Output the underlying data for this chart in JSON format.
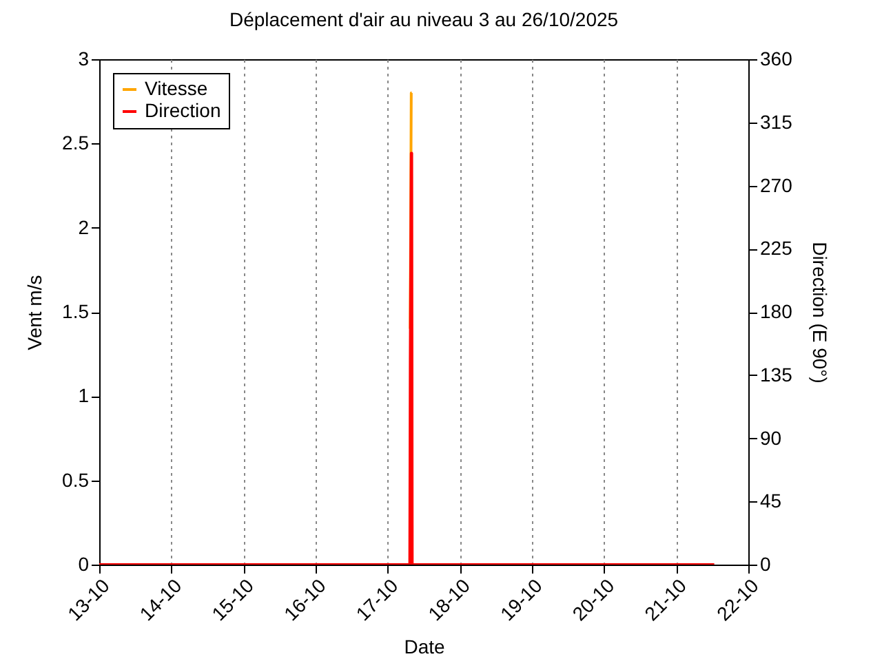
{
  "chart_data": {
    "type": "line",
    "title": "Déplacement d'air au niveau 3 au 26/10/2025",
    "xlabel": "Date",
    "ylabel": "Vent m/s",
    "y2label": "Direction (E 90°)",
    "series": [
      {
        "name": "Vitesse",
        "color": "#ffa500",
        "x": [
          "2025-10-17T07:30",
          "2025-10-17T07:50",
          "2025-10-17T08:00"
        ],
        "values": [
          1.4,
          2.8,
          2.8
        ]
      },
      {
        "name": "Direction",
        "color": "#ff0000",
        "axis": "y2",
        "x": [
          "2025-10-13T00:00",
          "2025-10-17T07:20",
          "2025-10-17T07:30",
          "2025-10-17T07:50",
          "2025-10-17T08:00",
          "2025-10-17T08:10",
          "2025-10-21T12:40"
        ],
        "values": [
          0,
          0,
          146,
          293,
          293,
          0,
          0
        ]
      }
    ],
    "xlim": [
      "2025-10-13",
      "2025-10-22"
    ],
    "xticks": [
      {
        "value": "2025-10-13",
        "label": "13-10"
      },
      {
        "value": "2025-10-14",
        "label": "14-10"
      },
      {
        "value": "2025-10-15",
        "label": "15-10"
      },
      {
        "value": "2025-10-16",
        "label": "16-10"
      },
      {
        "value": "2025-10-17",
        "label": "17-10"
      },
      {
        "value": "2025-10-18",
        "label": "18-10"
      },
      {
        "value": "2025-10-19",
        "label": "19-10"
      },
      {
        "value": "2025-10-20",
        "label": "20-10"
      },
      {
        "value": "2025-10-21",
        "label": "21-10"
      },
      {
        "value": "2025-10-22",
        "label": "22-10"
      }
    ],
    "ylim": [
      0,
      3
    ],
    "yticks": [
      0,
      0.5,
      1,
      1.5,
      2,
      2.5,
      3
    ],
    "y2lim": [
      0,
      360
    ],
    "y2ticks": [
      0,
      45,
      90,
      135,
      180,
      225,
      270,
      315,
      360
    ],
    "grid": "x",
    "legend": "top left",
    "line_style": "solid",
    "marker": "none"
  }
}
